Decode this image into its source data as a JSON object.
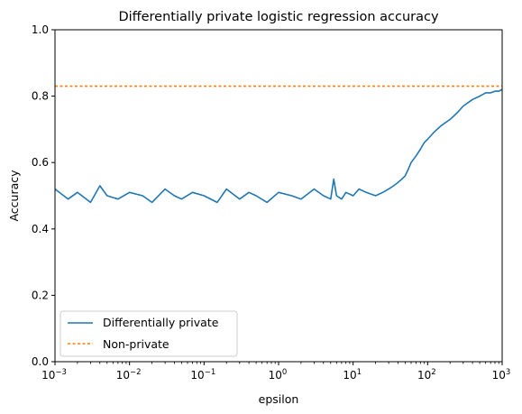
{
  "chart_data": {
    "type": "line",
    "title": "Differentially private logistic regression accuracy",
    "xlabel": "epsilon",
    "ylabel": "Accuracy",
    "xscale": "log",
    "xlim": [
      0.001,
      1000
    ],
    "ylim": [
      0.0,
      1.0
    ],
    "x_ticks": [
      {
        "value": 0.001,
        "base": "10",
        "exp": "−3"
      },
      {
        "value": 0.01,
        "base": "10",
        "exp": "−2"
      },
      {
        "value": 0.1,
        "base": "10",
        "exp": "−1"
      },
      {
        "value": 1,
        "base": "10",
        "exp": "0"
      },
      {
        "value": 10,
        "base": "10",
        "exp": "1"
      },
      {
        "value": 100,
        "base": "10",
        "exp": "2"
      },
      {
        "value": 1000,
        "base": "10",
        "exp": "3"
      }
    ],
    "y_ticks": [
      {
        "value": 0.0,
        "label": "0.0"
      },
      {
        "value": 0.2,
        "label": "0.2"
      },
      {
        "value": 0.4,
        "label": "0.4"
      },
      {
        "value": 0.6,
        "label": "0.6"
      },
      {
        "value": 0.8,
        "label": "0.8"
      },
      {
        "value": 1.0,
        "label": "1.0"
      }
    ],
    "grid": false,
    "legend_position": "lower-left",
    "series": [
      {
        "name": "Differentially private",
        "color": "#1f77b4",
        "style": "solid",
        "x": [
          0.001,
          0.0015,
          0.002,
          0.003,
          0.004,
          0.005,
          0.007,
          0.01,
          0.015,
          0.02,
          0.03,
          0.04,
          0.05,
          0.07,
          0.1,
          0.15,
          0.2,
          0.3,
          0.4,
          0.5,
          0.7,
          1,
          1.5,
          2,
          3,
          4,
          5,
          5.5,
          6,
          7,
          8,
          10,
          12,
          15,
          20,
          25,
          30,
          35,
          40,
          45,
          50,
          55,
          60,
          70,
          80,
          90,
          100,
          120,
          150,
          200,
          250,
          300,
          400,
          500,
          600,
          700,
          800,
          900,
          1000
        ],
        "y": [
          0.52,
          0.49,
          0.51,
          0.48,
          0.53,
          0.5,
          0.49,
          0.51,
          0.5,
          0.48,
          0.52,
          0.5,
          0.49,
          0.51,
          0.5,
          0.48,
          0.52,
          0.49,
          0.51,
          0.5,
          0.48,
          0.51,
          0.5,
          0.49,
          0.52,
          0.5,
          0.49,
          0.55,
          0.5,
          0.49,
          0.51,
          0.5,
          0.52,
          0.51,
          0.5,
          0.51,
          0.52,
          0.53,
          0.54,
          0.55,
          0.56,
          0.58,
          0.6,
          0.62,
          0.64,
          0.66,
          0.67,
          0.69,
          0.71,
          0.73,
          0.75,
          0.77,
          0.79,
          0.8,
          0.81,
          0.81,
          0.815,
          0.815,
          0.82
        ]
      },
      {
        "name": "Non-private",
        "color": "#ff7f0e",
        "style": "dashed",
        "x": [
          0.001,
          1000
        ],
        "y": [
          0.83,
          0.83
        ]
      }
    ]
  }
}
